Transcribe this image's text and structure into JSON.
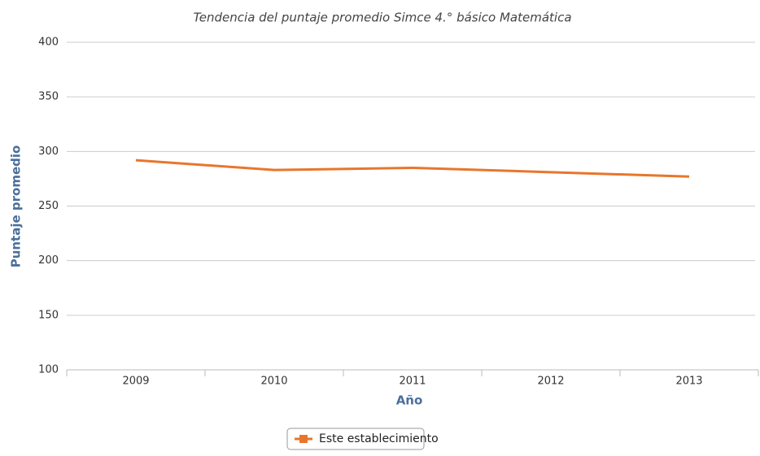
{
  "chart_data": {
    "type": "line",
    "title": "Tendencia del puntaje promedio Simce 4.° básico Matemática",
    "x_label": "Año",
    "y_label": "Puntaje promedio",
    "categories": [
      "2009",
      "2010",
      "2011",
      "2012",
      "2013"
    ],
    "series": [
      {
        "name": "Este establecimiento",
        "color": "#e8762c",
        "values": [
          292,
          283,
          285,
          281,
          277
        ]
      }
    ],
    "ylim": [
      100,
      400
    ],
    "yticks": [
      100,
      150,
      200,
      250,
      300,
      350,
      400
    ],
    "grid": true,
    "legend": "bottom"
  }
}
